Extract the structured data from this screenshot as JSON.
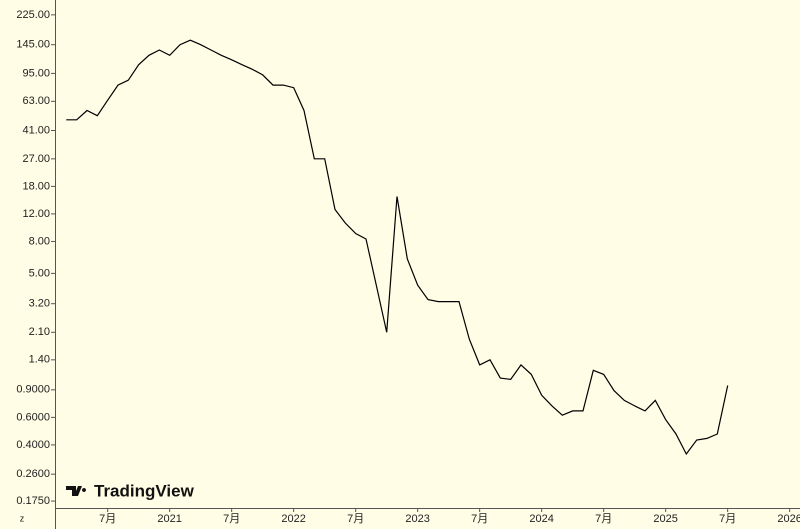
{
  "chart_data": {
    "type": "line",
    "log_scale": true,
    "corner_label": "z",
    "watermark": "TradingView",
    "background": "#fffde6",
    "series": [
      {
        "color": "#000000",
        "x": [
          "2020-03",
          "2020-04",
          "2020-05",
          "2020-06",
          "2020-07",
          "2020-08",
          "2020-09",
          "2020-10",
          "2020-11",
          "2020-12",
          "2021-01",
          "2021-02",
          "2021-03",
          "2021-04",
          "2021-05",
          "2021-06",
          "2021-07",
          "2021-08",
          "2021-09",
          "2021-10",
          "2021-11",
          "2021-12",
          "2022-01",
          "2022-02",
          "2022-03",
          "2022-04",
          "2022-05",
          "2022-06",
          "2022-07",
          "2022-08",
          "2022-09",
          "2022-10",
          "2022-11",
          "2022-12",
          "2023-01",
          "2023-02",
          "2023-03",
          "2023-04",
          "2023-05",
          "2023-06",
          "2023-07",
          "2023-08",
          "2023-09",
          "2023-10",
          "2023-11",
          "2023-12",
          "2024-01",
          "2024-02",
          "2024-03",
          "2024-04",
          "2024-05",
          "2024-06",
          "2024-07",
          "2024-08",
          "2024-09",
          "2024-10",
          "2024-11",
          "2024-12",
          "2025-01",
          "2025-02",
          "2025-03",
          "2025-04",
          "2025-05",
          "2025-06",
          "2025-07"
        ],
        "values": [
          48,
          48,
          55,
          51,
          64,
          80,
          86,
          108,
          124,
          134,
          124,
          145,
          155,
          145,
          134,
          124,
          116,
          108,
          101,
          93,
          80,
          80,
          77,
          55,
          27,
          27,
          12.8,
          10.5,
          9,
          8.3,
          4.2,
          2.1,
          15.5,
          6.2,
          4.2,
          3.4,
          3.3,
          3.3,
          3.3,
          1.9,
          1.3,
          1.4,
          1.07,
          1.05,
          1.3,
          1.13,
          0.83,
          0.71,
          0.62,
          0.66,
          0.66,
          1.2,
          1.13,
          0.89,
          0.77,
          0.71,
          0.66,
          0.77,
          0.58,
          0.47,
          0.35,
          0.43,
          0.44,
          0.47,
          0.96
        ]
      }
    ],
    "xlim": [
      "2020-02",
      "2026-02"
    ],
    "xticks": [
      {
        "value": "2020-07",
        "label": "7月"
      },
      {
        "value": "2021-01",
        "label": "2021"
      },
      {
        "value": "2021-07",
        "label": "7月"
      },
      {
        "value": "2022-01",
        "label": "2022"
      },
      {
        "value": "2022-07",
        "label": "7月"
      },
      {
        "value": "2023-01",
        "label": "2023"
      },
      {
        "value": "2023-07",
        "label": "7月"
      },
      {
        "value": "2024-01",
        "label": "2024"
      },
      {
        "value": "2024-07",
        "label": "7月"
      },
      {
        "value": "2025-01",
        "label": "2025"
      },
      {
        "value": "2025-07",
        "label": "7月"
      },
      {
        "value": "2026-01",
        "label": "2026"
      }
    ],
    "ylim": [
      0.158,
      280
    ],
    "yticks": [
      {
        "value": 225,
        "label": "225.00"
      },
      {
        "value": 145,
        "label": "145.00"
      },
      {
        "value": 95,
        "label": "95.00"
      },
      {
        "value": 63,
        "label": "63.00"
      },
      {
        "value": 41,
        "label": "41.00"
      },
      {
        "value": 27,
        "label": "27.00"
      },
      {
        "value": 18,
        "label": "18.00"
      },
      {
        "value": 12,
        "label": "12.00"
      },
      {
        "value": 8,
        "label": "8.00"
      },
      {
        "value": 5,
        "label": "5.00"
      },
      {
        "value": 3.2,
        "label": "3.20"
      },
      {
        "value": 2.1,
        "label": "2.10"
      },
      {
        "value": 1.4,
        "label": "1.40"
      },
      {
        "value": 0.9,
        "label": "0.9000"
      },
      {
        "value": 0.6,
        "label": "0.6000"
      },
      {
        "value": 0.4,
        "label": "0.4000"
      },
      {
        "value": 0.26,
        "label": "0.2600"
      },
      {
        "value": 0.175,
        "label": "0.1750"
      }
    ]
  }
}
